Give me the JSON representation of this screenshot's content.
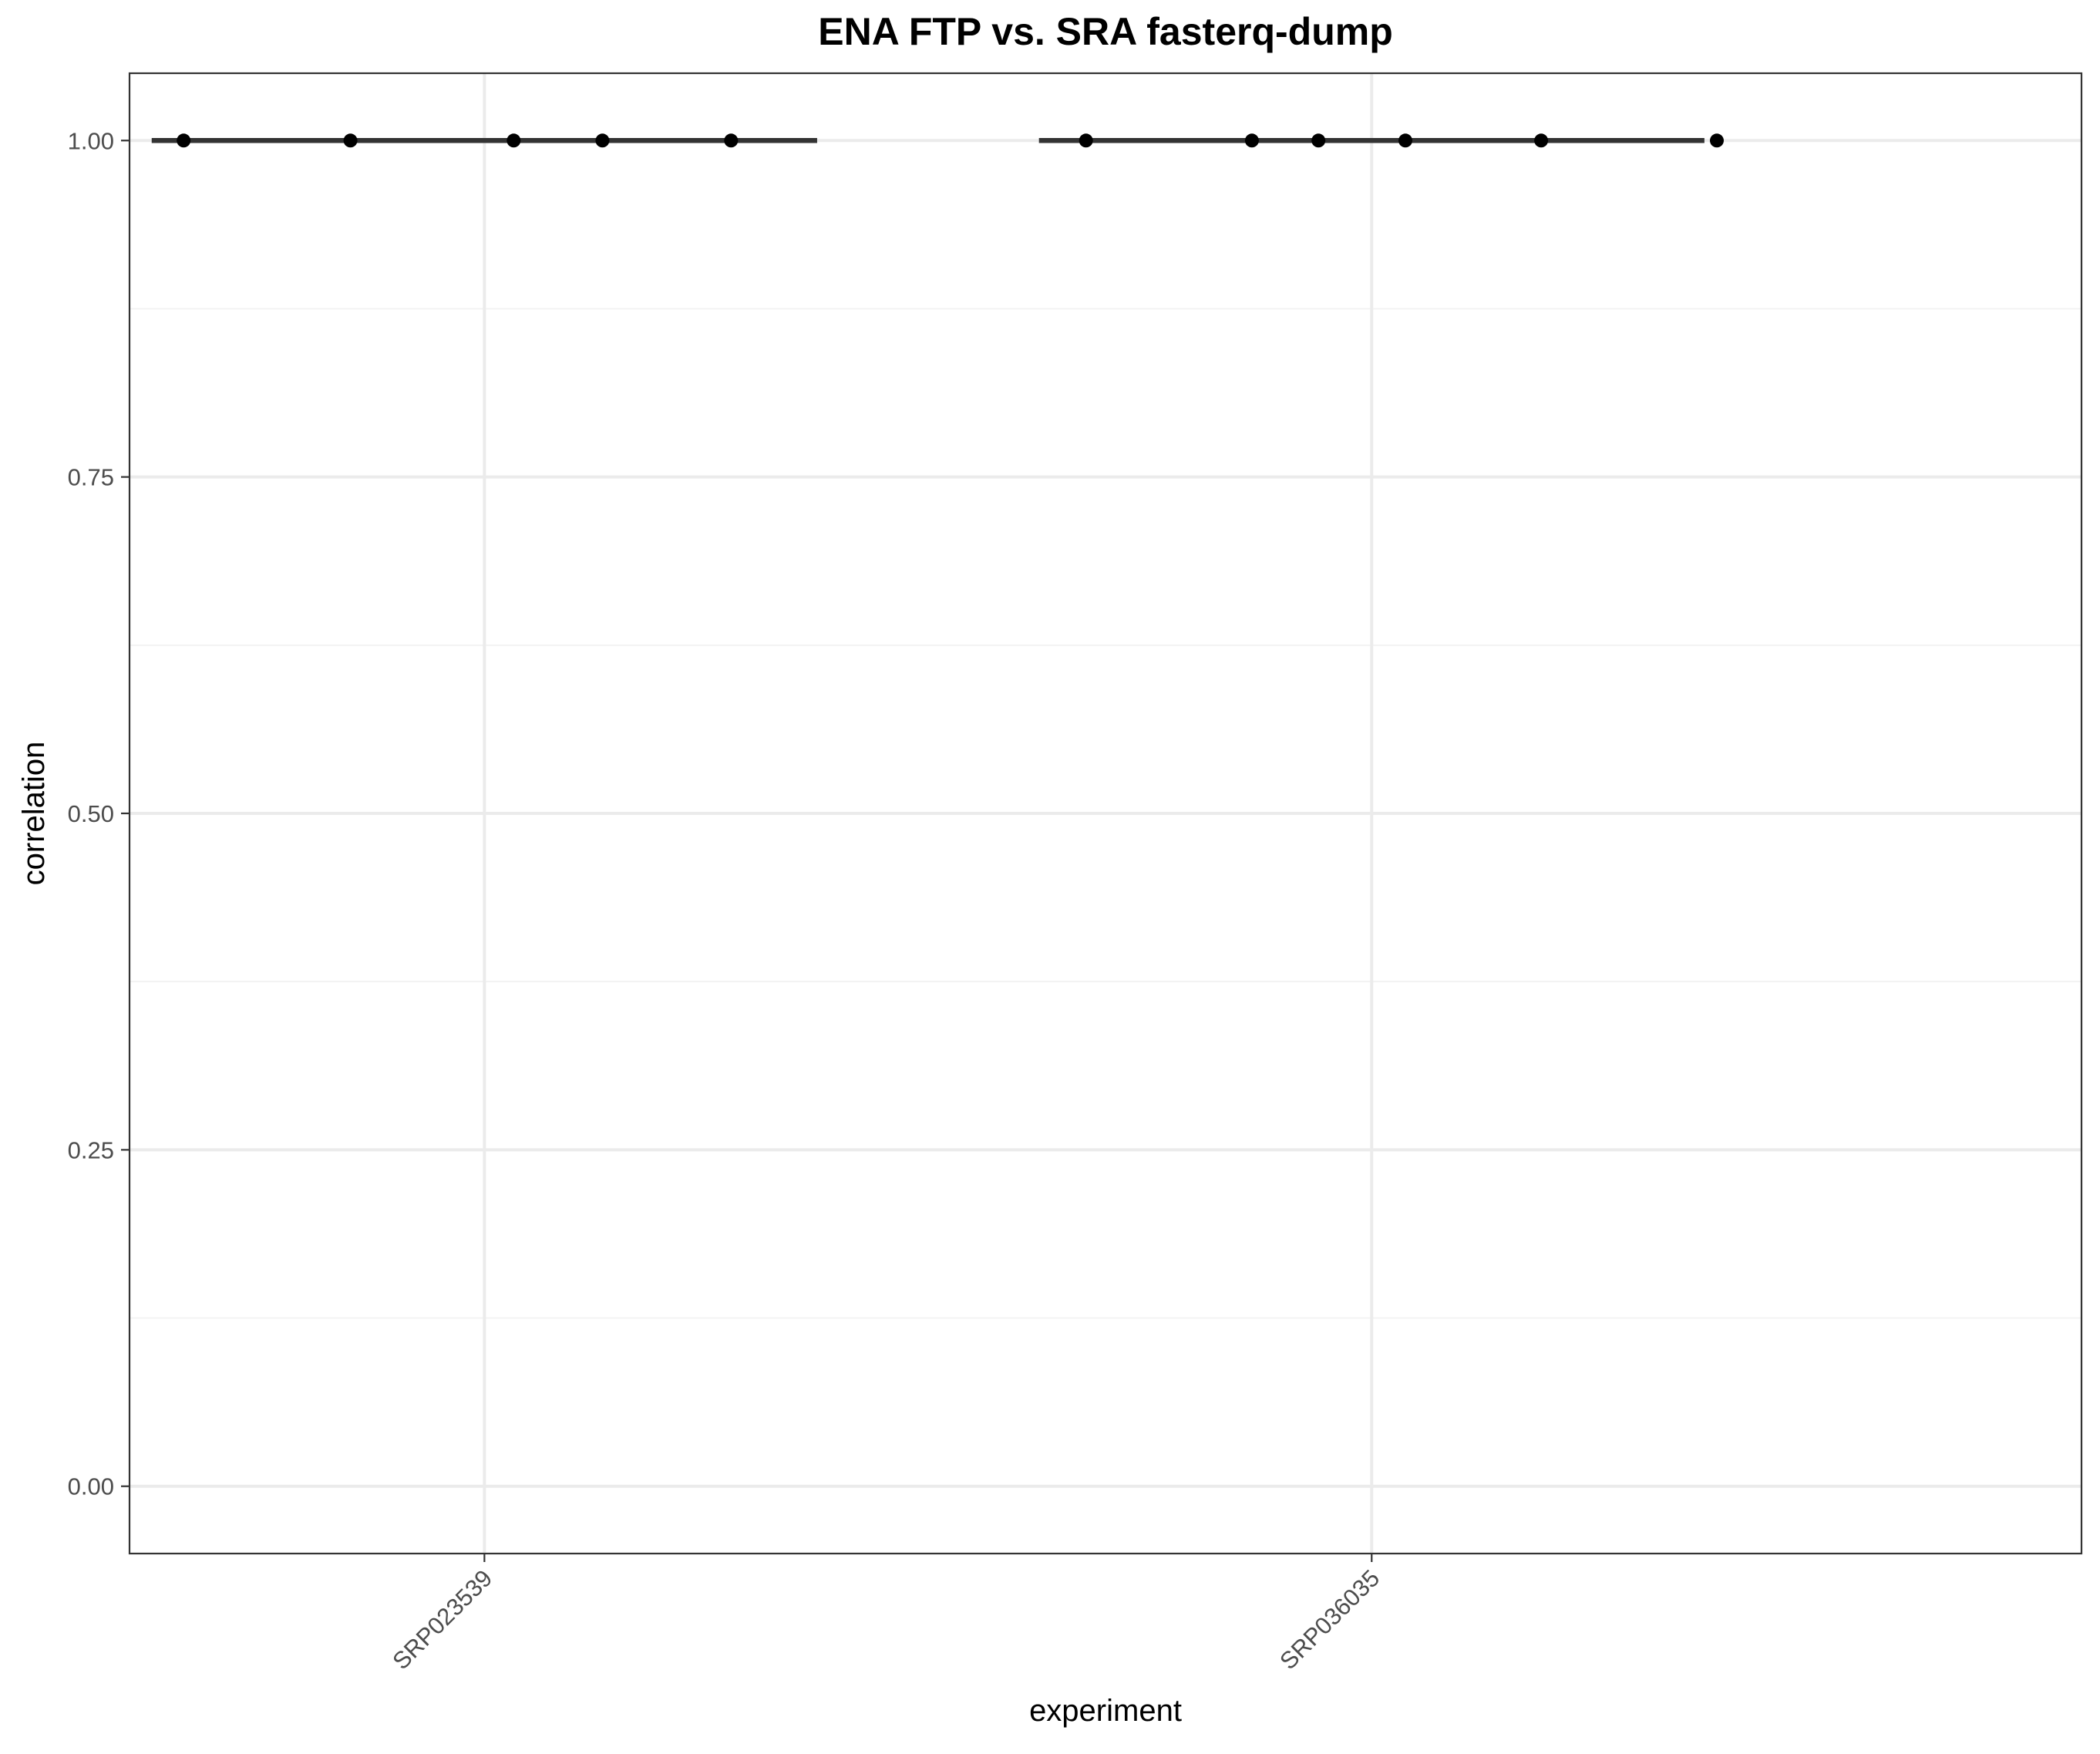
{
  "chart_data": {
    "type": "scatter",
    "title": "ENA FTP vs. SRA fasterq-dump",
    "xlabel": "experiment",
    "ylabel": "correlation",
    "categories": [
      "SRP023539",
      "SRP036035"
    ],
    "ylim": [
      -0.05,
      1.05
    ],
    "y_ticks": [
      0.0,
      0.25,
      0.5,
      0.75,
      1.0
    ],
    "y_tick_labels": [
      "0.00",
      "0.25",
      "0.50",
      "0.75",
      "1.00"
    ],
    "grid": true,
    "legend": "none",
    "medians": [
      {
        "category": "SRP023539",
        "value": 1.0,
        "span": [
          -0.375,
          0.375
        ]
      },
      {
        "category": "SRP036035",
        "value": 1.0,
        "span": [
          -0.375,
          0.375
        ]
      }
    ],
    "points": [
      {
        "category": "SRP023539",
        "jitter": -0.339,
        "y": 1.0
      },
      {
        "category": "SRP023539",
        "jitter": -0.151,
        "y": 1.0
      },
      {
        "category": "SRP023539",
        "jitter": 0.033,
        "y": 1.0
      },
      {
        "category": "SRP023539",
        "jitter": 0.133,
        "y": 1.0
      },
      {
        "category": "SRP023539",
        "jitter": 0.278,
        "y": 1.0
      },
      {
        "category": "SRP036035",
        "jitter": -0.322,
        "y": 1.0
      },
      {
        "category": "SRP036035",
        "jitter": -0.135,
        "y": 1.0
      },
      {
        "category": "SRP036035",
        "jitter": -0.06,
        "y": 1.0
      },
      {
        "category": "SRP036035",
        "jitter": 0.038,
        "y": 1.0
      },
      {
        "category": "SRP036035",
        "jitter": 0.191,
        "y": 1.0
      },
      {
        "category": "SRP036035",
        "jitter": 0.389,
        "y": 1.0
      }
    ],
    "colors": {
      "points": "#000000",
      "median_line": "#333333",
      "grid_major": "#ebebeb",
      "grid_minor": "#f3f3f3",
      "panel_border": "#333333",
      "tick_text": "#4d4d4d",
      "axis_title": "#000000"
    }
  }
}
